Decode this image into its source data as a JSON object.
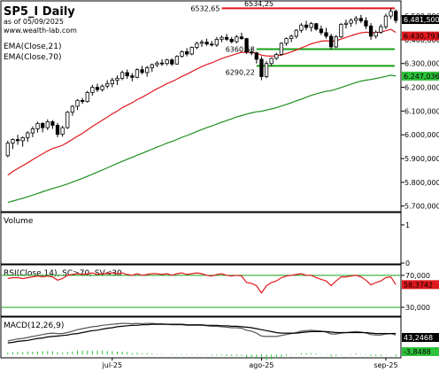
{
  "header": {
    "title": "SP5_I Daily",
    "asof": "as of 05/09/2025",
    "source": "www.wealth-lab.com"
  },
  "indicators": {
    "ema21": "EMA(Close,21)",
    "ema70": "EMA(Close,70)",
    "volume": "Volume",
    "rsi": "RSI(Close,14), SC>70, SV<30",
    "macd": "MACD(12,26,9)"
  },
  "colors": {
    "up_candle": "#ffffff",
    "down_candle": "#000000",
    "ema21": "#e0191e",
    "ema70": "#1f8f1f",
    "resistance_line": "#e0191e",
    "support_line": "#15a015",
    "price_label_bg": "#2ec13a",
    "last_close_bg": "#000000",
    "ema21_label_bg": "#e0191e",
    "ema70_label_bg": "#2ec13a",
    "rsi_line": "#e0191e",
    "rsi_band": "#15a015",
    "rsi_label_bg": "#e0191e",
    "macd_line": "#555555",
    "signal_line": "#000000",
    "histogram": "#2ec13a",
    "macd_label_bg": "#000000",
    "hist_label_bg": "#2ec13a"
  },
  "chart_data": {
    "type": "candlestick",
    "price_axis": {
      "ticks": [
        5700,
        5800,
        5900,
        6000,
        6100,
        6200,
        6300,
        6400,
        6500
      ],
      "tick_labels": [
        "5.700,000",
        "5.800,000",
        "5.900,000",
        "6.000,000",
        "6.100,000",
        "6.200,000",
        "6.300,000",
        "6.400,000",
        "6.500,000"
      ],
      "range": [
        5680,
        6560
      ]
    },
    "x_labels": [
      {
        "label": "jul-25",
        "index": 21
      },
      {
        "label": "ago-25",
        "index": 51
      },
      {
        "label": "sep-25",
        "index": 76
      }
    ],
    "candles": [
      [
        5912,
        5975,
        5905,
        5965
      ],
      [
        5965,
        5985,
        5940,
        5980
      ],
      [
        5980,
        6000,
        5958,
        5975
      ],
      [
        5975,
        5993,
        5950,
        5988
      ],
      [
        5988,
        6015,
        5970,
        6008
      ],
      [
        6008,
        6035,
        5990,
        6025
      ],
      [
        6025,
        6055,
        6010,
        6048
      ],
      [
        6048,
        6052,
        6010,
        6030
      ],
      [
        6030,
        6065,
        6020,
        6055
      ],
      [
        6055,
        6062,
        6025,
        6040
      ],
      [
        6040,
        6050,
        5990,
        6002
      ],
      [
        6002,
        6038,
        5992,
        6030
      ],
      [
        6030,
        6100,
        6025,
        6095
      ],
      [
        6095,
        6125,
        6080,
        6120
      ],
      [
        6120,
        6150,
        6105,
        6145
      ],
      [
        6145,
        6155,
        6130,
        6140
      ],
      [
        6140,
        6185,
        6135,
        6178
      ],
      [
        6178,
        6210,
        6165,
        6200
      ],
      [
        6200,
        6215,
        6180,
        6190
      ],
      [
        6190,
        6212,
        6182,
        6205
      ],
      [
        6205,
        6230,
        6195,
        6215
      ],
      [
        6215,
        6240,
        6200,
        6230
      ],
      [
        6230,
        6250,
        6210,
        6238
      ],
      [
        6238,
        6270,
        6230,
        6262
      ],
      [
        6262,
        6275,
        6235,
        6248
      ],
      [
        6248,
        6260,
        6225,
        6242
      ],
      [
        6242,
        6280,
        6238,
        6274
      ],
      [
        6274,
        6290,
        6255,
        6262
      ],
      [
        6262,
        6290,
        6245,
        6282
      ],
      [
        6282,
        6300,
        6265,
        6295
      ],
      [
        6295,
        6310,
        6285,
        6302
      ],
      [
        6302,
        6318,
        6290,
        6300
      ],
      [
        6300,
        6320,
        6292,
        6315
      ],
      [
        6315,
        6322,
        6290,
        6298
      ],
      [
        6298,
        6335,
        6295,
        6330
      ],
      [
        6330,
        6355,
        6325,
        6350
      ],
      [
        6350,
        6365,
        6330,
        6340
      ],
      [
        6340,
        6372,
        6335,
        6368
      ],
      [
        6368,
        6392,
        6360,
        6385
      ],
      [
        6385,
        6400,
        6370,
        6390
      ],
      [
        6390,
        6405,
        6375,
        6382
      ],
      [
        6382,
        6395,
        6372,
        6378
      ],
      [
        6378,
        6412,
        6370,
        6402
      ],
      [
        6402,
        6418,
        6390,
        6410
      ],
      [
        6410,
        6425,
        6395,
        6402
      ],
      [
        6402,
        6412,
        6385,
        6392
      ],
      [
        6392,
        6420,
        6385,
        6412
      ],
      [
        6412,
        6430,
        6400,
        6405
      ],
      [
        6405,
        6408,
        6340,
        6348
      ],
      [
        6348,
        6365,
        6335,
        6345
      ],
      [
        6345,
        6350,
        6300,
        6318
      ],
      [
        6318,
        6330,
        6230,
        6245
      ],
      [
        6245,
        6310,
        6238,
        6300
      ],
      [
        6300,
        6325,
        6290,
        6322
      ],
      [
        6322,
        6345,
        6315,
        6338
      ],
      [
        6338,
        6390,
        6332,
        6385
      ],
      [
        6385,
        6410,
        6375,
        6405
      ],
      [
        6405,
        6422,
        6390,
        6415
      ],
      [
        6415,
        6445,
        6405,
        6440
      ],
      [
        6440,
        6470,
        6430,
        6462
      ],
      [
        6462,
        6480,
        6440,
        6452
      ],
      [
        6452,
        6475,
        6435,
        6468
      ],
      [
        6468,
        6470,
        6438,
        6445
      ],
      [
        6445,
        6460,
        6420,
        6430
      ],
      [
        6430,
        6450,
        6405,
        6415
      ],
      [
        6415,
        6425,
        6360,
        6370
      ],
      [
        6370,
        6420,
        6365,
        6412
      ],
      [
        6412,
        6470,
        6408,
        6465
      ],
      [
        6465,
        6485,
        6448,
        6470
      ],
      [
        6470,
        6490,
        6455,
        6482
      ],
      [
        6482,
        6500,
        6465,
        6490
      ],
      [
        6490,
        6505,
        6470,
        6480
      ],
      [
        6480,
        6495,
        6445,
        6458
      ],
      [
        6458,
        6470,
        6400,
        6415
      ],
      [
        6415,
        6440,
        6405,
        6432
      ],
      [
        6432,
        6465,
        6425,
        6455
      ],
      [
        6455,
        6510,
        6445,
        6500
      ],
      [
        6500,
        6533,
        6488,
        6520
      ],
      [
        6520,
        6528,
        6470,
        6481.5
      ]
    ],
    "ema21": [
      5830,
      5845,
      5858,
      5870,
      5882,
      5895,
      5908,
      5920,
      5932,
      5942,
      5948,
      5956,
      5968,
      5981,
      5994,
      6006,
      6020,
      6035,
      6048,
      6061,
      6074,
      6088,
      6100,
      6114,
      6125,
      6135,
      6148,
      6158,
      6170,
      6182,
      6194,
      6204,
      6216,
      6224,
      6234,
      6246,
      6255,
      6266,
      6277,
      6287,
      6296,
      6303,
      6312,
      6321,
      6328,
      6334,
      6341,
      6347,
      6347,
      6347,
      6344,
      6335,
      6332,
      6331,
      6332,
      6336,
      6342,
      6349,
      6357,
      6366,
      6374,
      6383,
      6389,
      6394,
      6396,
      6394,
      6396,
      6403,
      6410,
      6417,
      6424,
      6429,
      6432,
      6430,
      6430,
      6432,
      6438,
      6444,
      6430.8
    ],
    "ema70": [
      5715,
      5721,
      5727,
      5733,
      5739,
      5746,
      5753,
      5760,
      5767,
      5774,
      5780,
      5786,
      5793,
      5801,
      5809,
      5817,
      5825,
      5834,
      5843,
      5852,
      5861,
      5870,
      5879,
      5888,
      5897,
      5905,
      5914,
      5922,
      5931,
      5939,
      5948,
      5956,
      5965,
      5972,
      5980,
      5989,
      5997,
      6005,
      6014,
      6022,
      6030,
      6037,
      6045,
      6053,
      6060,
      6067,
      6075,
      6081,
      6087,
      6092,
      6097,
      6099,
      6104,
      6109,
      6114,
      6121,
      6128,
      6135,
      6143,
      6150,
      6158,
      6166,
      6172,
      6178,
      6183,
      6186,
      6192,
      6199,
      6206,
      6213,
      6220,
      6226,
      6230,
      6233,
      6237,
      6241,
      6246,
      6251,
      6247
    ],
    "levels": [
      {
        "value": 6532.65,
        "label": "6532,65",
        "type": "resistance",
        "from_index": 44
      },
      {
        "value": 6360.58,
        "label": "6360,58",
        "type": "support",
        "from_index": 51
      },
      {
        "value": 6290.22,
        "label": "6290,22",
        "type": "support",
        "from_index": 51
      }
    ],
    "top_clip_label": "6534,25",
    "price_labels": [
      {
        "value": 6481.5,
        "text": "6.481,500",
        "style": "close"
      },
      {
        "value": 6430.793,
        "text": "6.430,793",
        "style": "ema21"
      },
      {
        "value": 6247.036,
        "text": "6.247,036",
        "style": "ema70"
      }
    ],
    "volume": {
      "ticks": [
        1,
        0
      ],
      "tick_labels": [
        "1",
        "0"
      ],
      "range": [
        0,
        1.3
      ],
      "values": []
    },
    "rsi": {
      "ticks": [
        70,
        30
      ],
      "tick_labels": [
        "70,000",
        "30,000"
      ],
      "range": [
        20,
        82
      ],
      "last_label": "58,3742",
      "values": [
        66,
        67,
        67,
        66,
        67,
        68,
        69,
        68,
        69,
        68,
        64,
        66,
        70,
        71,
        72,
        71,
        72,
        73,
        71,
        72,
        72,
        73,
        72,
        73,
        71,
        70,
        72,
        70,
        71,
        72,
        72,
        71,
        72,
        70,
        72,
        73,
        71,
        72,
        73,
        72,
        70,
        69,
        71,
        72,
        70,
        69,
        70,
        69,
        61,
        60,
        57,
        48,
        57,
        61,
        63,
        67,
        69,
        70,
        71,
        72,
        70,
        70,
        67,
        65,
        63,
        57,
        63,
        68,
        68,
        69,
        70,
        68,
        64,
        58,
        61,
        63,
        67,
        68,
        58.37
      ]
    },
    "macd": {
      "ticks": [],
      "signal_last_label": "43,2468",
      "hist_last_label": "-3,8488",
      "range": [
        -5,
        75
      ],
      "macd": [
        28,
        30,
        32,
        33,
        35,
        37,
        39,
        41,
        43,
        44,
        43,
        43,
        45,
        48,
        51,
        53,
        55,
        57,
        58,
        60,
        61,
        62,
        63,
        64,
        64,
        63,
        64,
        63,
        64,
        64,
        63,
        63,
        62,
        61,
        61,
        61,
        60,
        60,
        60,
        60,
        59,
        58,
        58,
        57,
        56,
        55,
        55,
        54,
        50,
        48,
        44,
        38,
        37,
        37,
        37,
        39,
        41,
        43,
        45,
        48,
        49,
        50,
        49,
        48,
        46,
        42,
        42,
        44,
        45,
        46,
        47,
        46,
        44,
        41,
        40,
        40,
        42,
        43,
        40
      ],
      "signal": [
        24,
        25,
        27,
        28,
        29,
        31,
        33,
        34,
        36,
        37,
        38,
        39,
        40,
        42,
        43,
        45,
        47,
        49,
        50,
        52,
        54,
        55,
        57,
        58,
        59,
        60,
        60,
        61,
        61,
        62,
        62,
        62,
        62,
        62,
        62,
        62,
        61,
        61,
        61,
        61,
        60,
        60,
        60,
        59,
        59,
        58,
        58,
        57,
        56,
        55,
        53,
        51,
        49,
        47,
        45,
        44,
        44,
        44,
        44,
        45,
        46,
        47,
        47,
        47,
        47,
        46,
        45,
        45,
        45,
        45,
        45,
        45,
        45,
        44,
        43,
        43,
        43,
        43,
        43.25
      ],
      "histogram": [
        4,
        5,
        5,
        5,
        6,
        6,
        6,
        7,
        7,
        7,
        5,
        4,
        5,
        6,
        8,
        8,
        8,
        8,
        8,
        8,
        7,
        7,
        6,
        6,
        5,
        3,
        4,
        2,
        3,
        2,
        1,
        1,
        0,
        -1,
        -1,
        -1,
        -1,
        -1,
        -1,
        -1,
        -1,
        -2,
        -2,
        -2,
        -3,
        -3,
        -3,
        -3,
        -6,
        -7,
        -9,
        -13,
        -12,
        -10,
        -8,
        -5,
        -3,
        -1,
        1,
        3,
        3,
        3,
        2,
        1,
        -1,
        -4,
        -3,
        -1,
        0,
        1,
        2,
        1,
        -1,
        -3,
        -3,
        -3,
        -1,
        0,
        -3.85
      ]
    }
  }
}
